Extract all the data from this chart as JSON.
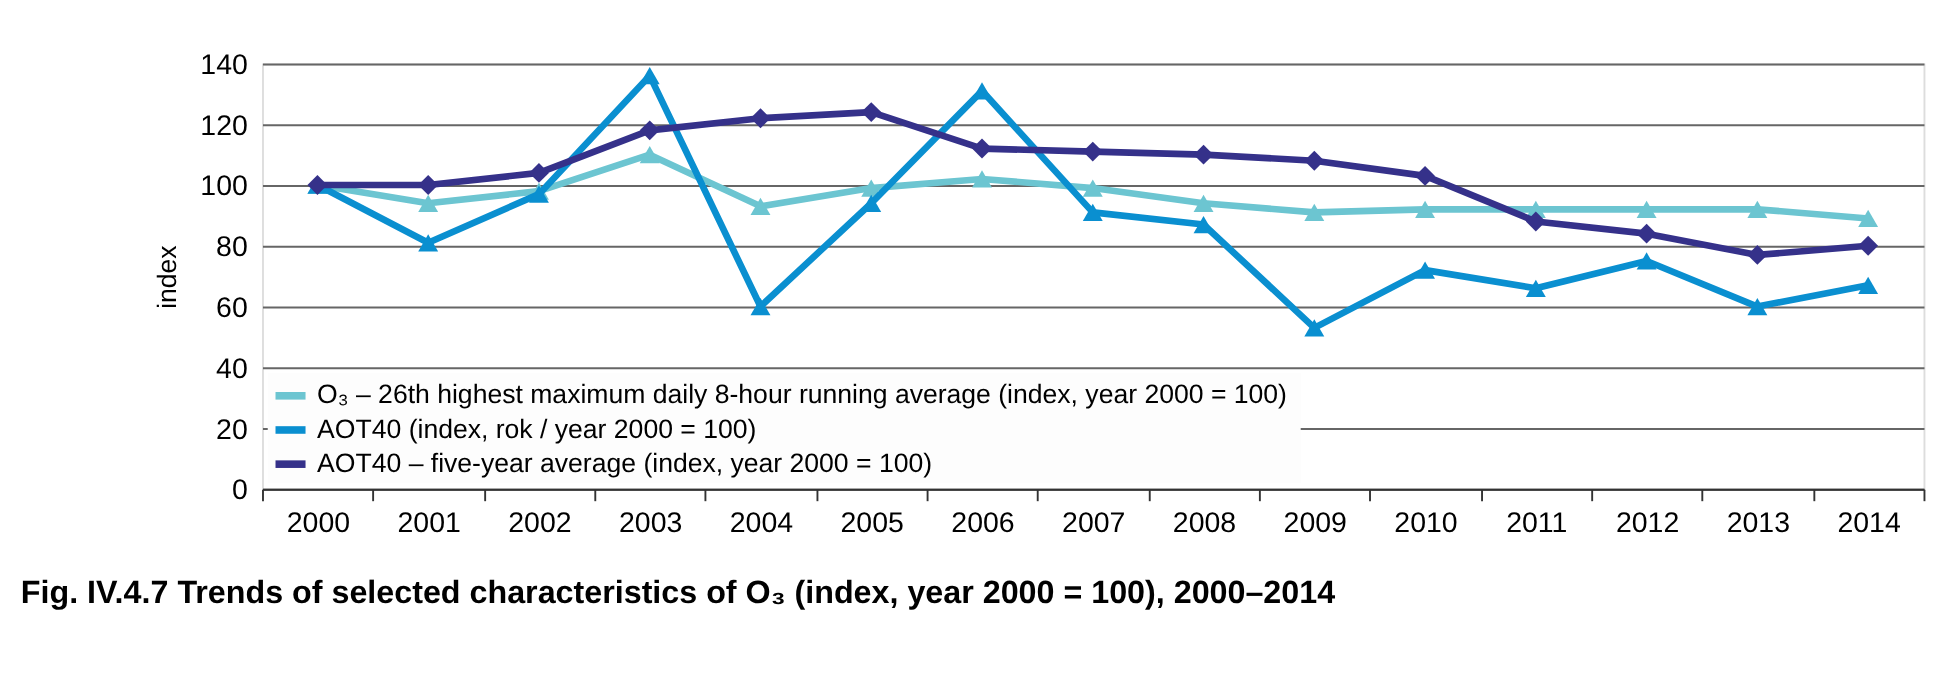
{
  "chart_data": {
    "type": "line",
    "title": "Fig. IV.4.7  Trends of selected characteristics of O₃ (index, year 2000 = 100), 2000–2014",
    "ylabel": "index",
    "categories": [
      "2000",
      "2001",
      "2002",
      "2003",
      "2004",
      "2005",
      "2006",
      "2007",
      "2008",
      "2009",
      "2010",
      "2011",
      "2012",
      "2013",
      "2014"
    ],
    "series": [
      {
        "name": "O₃ – 26th highest maximum daily 8-hour running average  (index, year 2000 = 100)",
        "color": "#6cc5d1",
        "marker": "triangle",
        "values": [
          100,
          94,
          98,
          110,
          93,
          99,
          102,
          99,
          94,
          91,
          92,
          92,
          92,
          92,
          89
        ]
      },
      {
        "name": "AOT40 (index, rok / year 2000 = 100)",
        "color": "#0a8fd0",
        "marker": "triangle",
        "values": [
          100,
          81,
          97,
          136,
          60,
          94,
          131,
          91,
          87,
          53,
          72,
          66,
          75,
          60,
          67
        ]
      },
      {
        "name": "AOT40 – five-year average (index, year 2000 = 100)",
        "color": "#35318a",
        "marker": "diamond",
        "values": [
          100,
          100,
          104,
          118,
          122,
          124,
          112,
          111,
          110,
          108,
          103,
          88,
          84,
          77,
          80
        ]
      }
    ],
    "ylim": [
      0,
      140
    ],
    "yticks": [
      0,
      20,
      40,
      60,
      80,
      100,
      120,
      140
    ],
    "grid": "y",
    "legend": "bottom left",
    "line_style": "solid"
  }
}
